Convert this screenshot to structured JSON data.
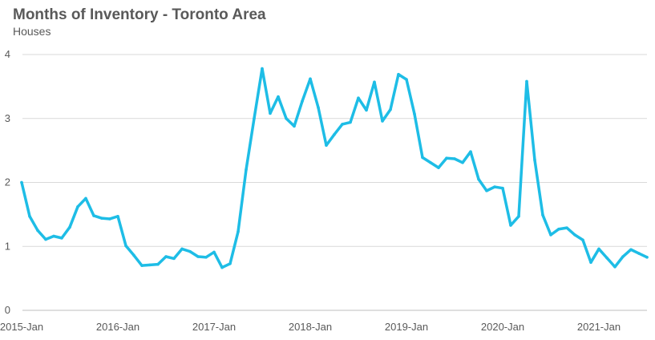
{
  "chart_data": {
    "type": "line",
    "title": "Months of Inventory - Toronto Area",
    "subtitle": "Houses",
    "xlabel": "",
    "ylabel": "",
    "ylim": [
      0,
      4
    ],
    "yticks": [
      "0",
      "1",
      "2",
      "3",
      "4"
    ],
    "xticks": [
      {
        "label": "2015-Jan",
        "index": 0
      },
      {
        "label": "2016-Jan",
        "index": 12
      },
      {
        "label": "2017-Jan",
        "index": 24
      },
      {
        "label": "2018-Jan",
        "index": 36
      },
      {
        "label": "2019-Jan",
        "index": 48
      },
      {
        "label": "2020-Jan",
        "index": 60
      },
      {
        "label": "2021-Jan",
        "index": 72
      }
    ],
    "grid": true,
    "color": "#1EBDE6",
    "series": [
      {
        "name": "Houses",
        "values": [
          2.0,
          1.47,
          1.25,
          1.11,
          1.16,
          1.13,
          1.3,
          1.62,
          1.75,
          1.48,
          1.44,
          1.43,
          1.47,
          1.01,
          0.86,
          0.7,
          0.71,
          0.72,
          0.84,
          0.81,
          0.96,
          0.92,
          0.84,
          0.83,
          0.91,
          0.67,
          0.73,
          1.23,
          2.2,
          3.0,
          3.78,
          3.08,
          3.34,
          3.0,
          2.88,
          3.27,
          3.62,
          3.17,
          2.58,
          2.75,
          2.91,
          2.94,
          3.32,
          3.13,
          3.57,
          2.96,
          3.14,
          3.69,
          3.61,
          3.07,
          2.39,
          2.31,
          2.23,
          2.38,
          2.37,
          2.31,
          2.48,
          2.05,
          1.87,
          1.93,
          1.91,
          1.33,
          1.47,
          3.58,
          2.35,
          1.49,
          1.18,
          1.27,
          1.29,
          1.18,
          1.1,
          0.75,
          0.96,
          0.82,
          0.68,
          0.84,
          0.95,
          0.89,
          0.83
        ]
      }
    ]
  }
}
